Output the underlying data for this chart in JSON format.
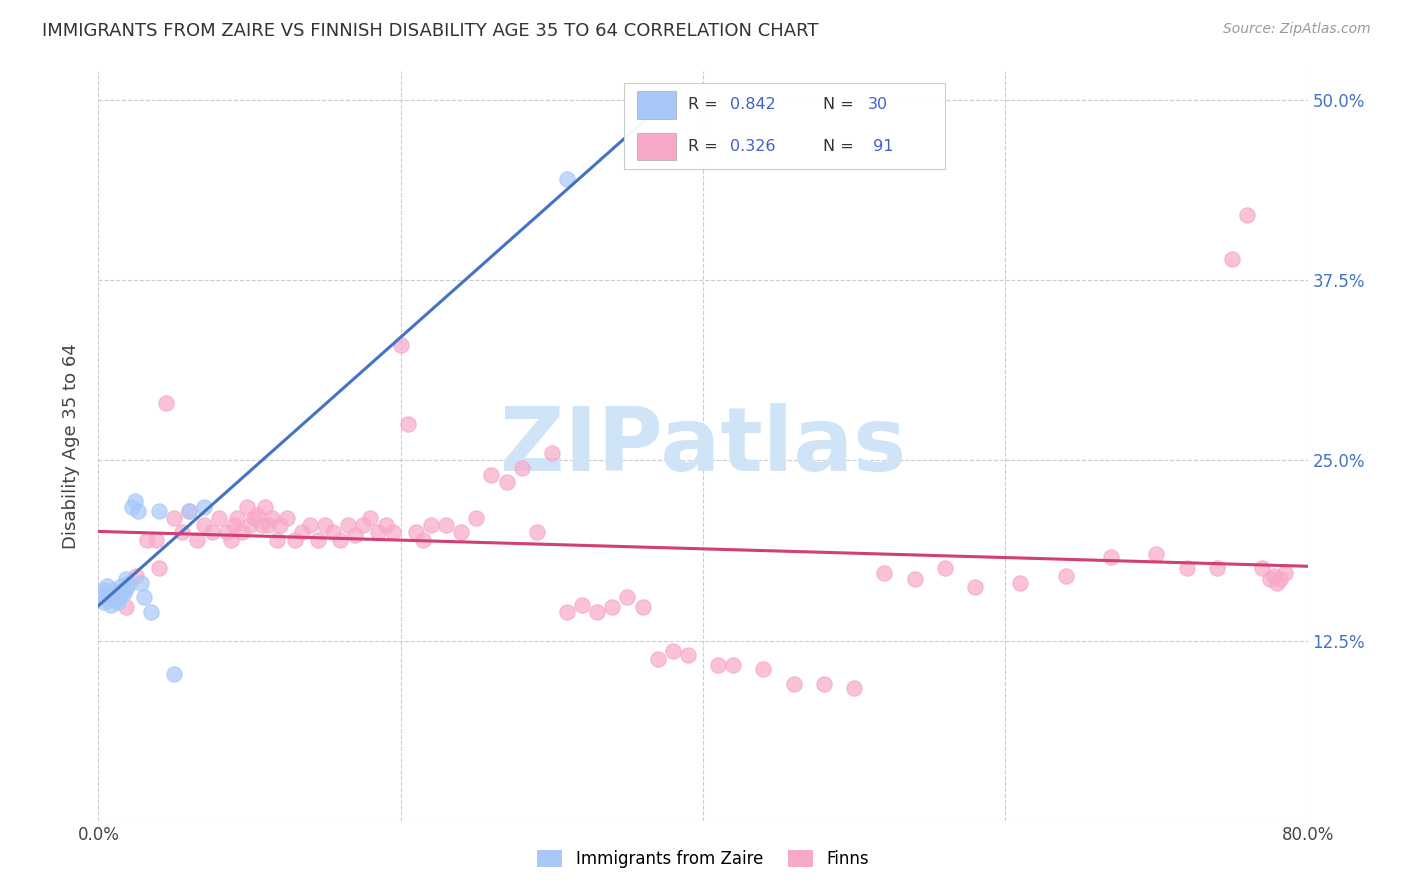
{
  "title": "IMMIGRANTS FROM ZAIRE VS FINNISH DISABILITY AGE 35 TO 64 CORRELATION CHART",
  "source": "Source: ZipAtlas.com",
  "ylabel": "Disability Age 35 to 64",
  "xlim": [
    0.0,
    0.8
  ],
  "ylim": [
    0.0,
    0.52
  ],
  "color_zaire": "#a8c8f8",
  "color_finns": "#f8a8c8",
  "color_line_zaire": "#4472c4",
  "color_line_finns": "#d04070",
  "color_legend_text_label": "#222222",
  "color_legend_text_value": "#4060d0",
  "watermark_color": "#d0e4f8",
  "background_color": "#ffffff",
  "grid_color": "#cccccc",
  "zaire_x": [
    0.002,
    0.003,
    0.004,
    0.005,
    0.006,
    0.007,
    0.008,
    0.009,
    0.01,
    0.011,
    0.012,
    0.013,
    0.014,
    0.015,
    0.016,
    0.017,
    0.018,
    0.019,
    0.02,
    0.022,
    0.024,
    0.026,
    0.028,
    0.03,
    0.035,
    0.04,
    0.05,
    0.06,
    0.07,
    0.31
  ],
  "zaire_y": [
    0.155,
    0.16,
    0.152,
    0.158,
    0.163,
    0.155,
    0.15,
    0.16,
    0.155,
    0.153,
    0.158,
    0.152,
    0.155,
    0.163,
    0.16,
    0.158,
    0.168,
    0.162,
    0.165,
    0.218,
    0.222,
    0.215,
    0.165,
    0.155,
    0.145,
    0.215,
    0.102,
    0.215,
    0.218,
    0.445
  ],
  "finns_x": [
    0.01,
    0.018,
    0.025,
    0.032,
    0.038,
    0.04,
    0.045,
    0.05,
    0.055,
    0.06,
    0.065,
    0.07,
    0.075,
    0.08,
    0.085,
    0.088,
    0.09,
    0.092,
    0.095,
    0.098,
    0.1,
    0.103,
    0.105,
    0.108,
    0.11,
    0.112,
    0.115,
    0.118,
    0.12,
    0.125,
    0.13,
    0.135,
    0.14,
    0.145,
    0.15,
    0.155,
    0.16,
    0.165,
    0.17,
    0.175,
    0.18,
    0.185,
    0.19,
    0.195,
    0.2,
    0.205,
    0.21,
    0.215,
    0.22,
    0.23,
    0.24,
    0.25,
    0.26,
    0.27,
    0.28,
    0.29,
    0.3,
    0.31,
    0.32,
    0.33,
    0.34,
    0.35,
    0.36,
    0.37,
    0.38,
    0.39,
    0.41,
    0.42,
    0.44,
    0.46,
    0.48,
    0.5,
    0.52,
    0.54,
    0.56,
    0.58,
    0.61,
    0.64,
    0.67,
    0.7,
    0.72,
    0.74,
    0.75,
    0.76,
    0.77,
    0.775,
    0.778,
    0.78,
    0.782,
    0.785
  ],
  "finns_y": [
    0.155,
    0.148,
    0.17,
    0.195,
    0.195,
    0.175,
    0.29,
    0.21,
    0.2,
    0.215,
    0.195,
    0.205,
    0.2,
    0.21,
    0.2,
    0.195,
    0.205,
    0.21,
    0.2,
    0.218,
    0.205,
    0.21,
    0.212,
    0.205,
    0.218,
    0.205,
    0.21,
    0.195,
    0.205,
    0.21,
    0.195,
    0.2,
    0.205,
    0.195,
    0.205,
    0.2,
    0.195,
    0.205,
    0.198,
    0.205,
    0.21,
    0.2,
    0.205,
    0.2,
    0.33,
    0.275,
    0.2,
    0.195,
    0.205,
    0.205,
    0.2,
    0.21,
    0.24,
    0.235,
    0.245,
    0.2,
    0.255,
    0.145,
    0.15,
    0.145,
    0.148,
    0.155,
    0.148,
    0.112,
    0.118,
    0.115,
    0.108,
    0.108,
    0.105,
    0.095,
    0.095,
    0.092,
    0.172,
    0.168,
    0.175,
    0.162,
    0.165,
    0.17,
    0.183,
    0.185,
    0.175,
    0.175,
    0.39,
    0.42,
    0.175,
    0.168,
    0.17,
    0.165,
    0.168,
    0.172
  ]
}
